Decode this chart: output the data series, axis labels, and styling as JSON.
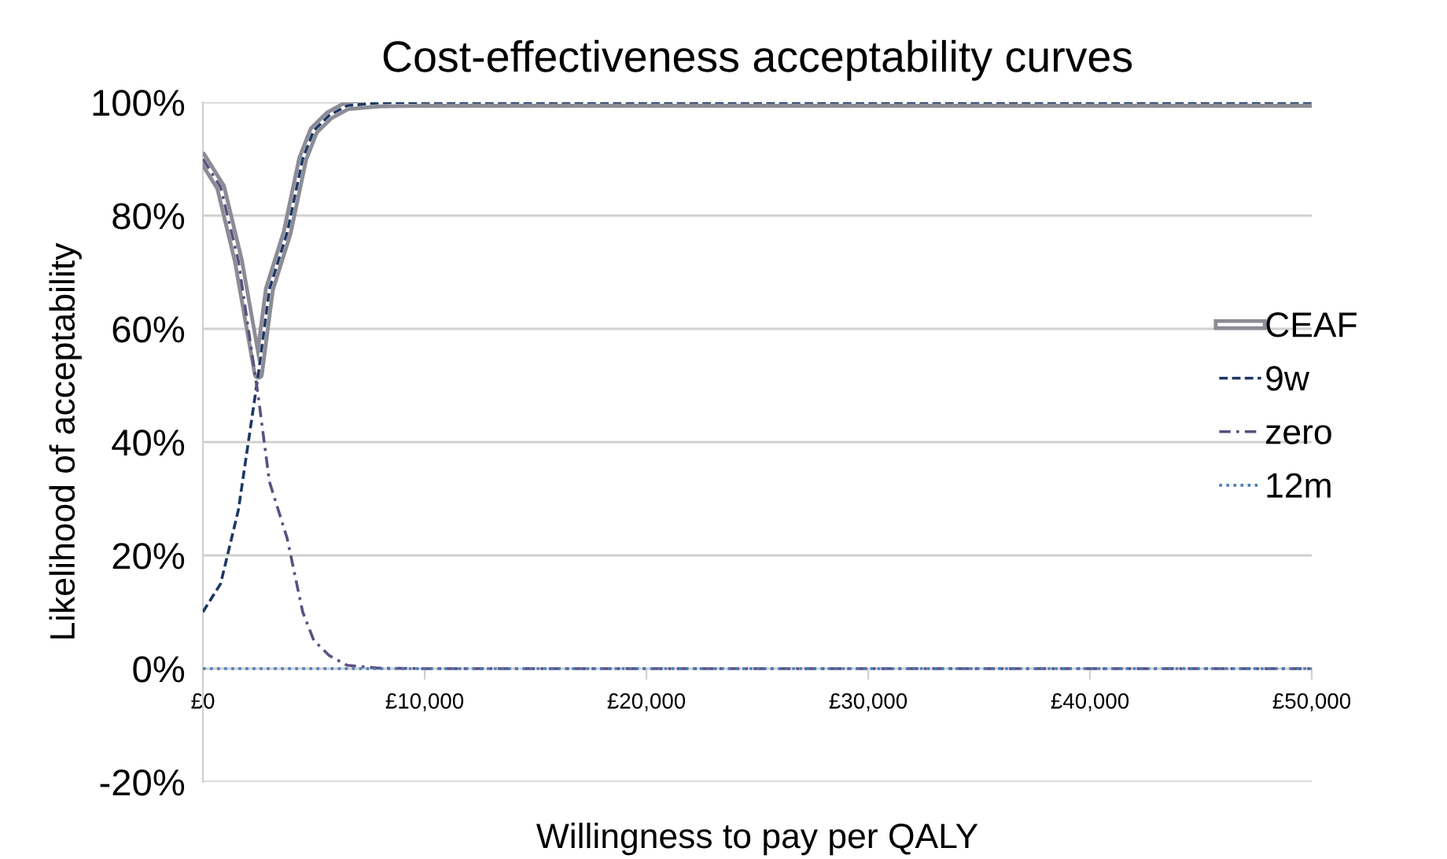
{
  "chart_data": {
    "type": "line",
    "title": "Cost-effectiveness acceptability curves",
    "xlabel": "Willingness to pay per QALY",
    "ylabel": "Likelihood of acceptability",
    "xlim": [
      0,
      50000
    ],
    "ylim": [
      -20,
      100
    ],
    "xticks": [
      {
        "value": 0,
        "label": "£0"
      },
      {
        "value": 10000,
        "label": "£10,000"
      },
      {
        "value": 20000,
        "label": "£20,000"
      },
      {
        "value": 30000,
        "label": "£30,000"
      },
      {
        "value": 40000,
        "label": "£40,000"
      },
      {
        "value": 50000,
        "label": "£50,000"
      }
    ],
    "yticks": [
      {
        "value": -20,
        "label": "-20%"
      },
      {
        "value": 0,
        "label": "0%"
      },
      {
        "value": 20,
        "label": "20%"
      },
      {
        "value": 40,
        "label": "40%"
      },
      {
        "value": 60,
        "label": "60%"
      },
      {
        "value": 80,
        "label": "80%"
      },
      {
        "value": 100,
        "label": "100%"
      }
    ],
    "x": [
      0,
      800,
      1600,
      2500,
      3000,
      3800,
      4500,
      5000,
      5700,
      6500,
      7900,
      10000,
      20000,
      30000,
      40000,
      50000
    ],
    "series": [
      {
        "name": "CEAF",
        "color": "#8c8c96",
        "line_style": "solid",
        "values": [
          90,
          85,
          72,
          52,
          67,
          77,
          90,
          95,
          97.7,
          99.4,
          99.9,
          100,
          100,
          100,
          100,
          100
        ]
      },
      {
        "name": "9w",
        "color": "#1f3864",
        "line_style": "dashed",
        "values": [
          10,
          15,
          28,
          52,
          67,
          77,
          90,
          95,
          97.7,
          99.4,
          99.9,
          100,
          100,
          100,
          100,
          100
        ]
      },
      {
        "name": "zero",
        "color": "#5e4f80",
        "line_style": "dashdot",
        "values": [
          90,
          85,
          72,
          48,
          33,
          23,
          10,
          5,
          2.3,
          0.6,
          0.1,
          0,
          0,
          0,
          0,
          0
        ]
      },
      {
        "name": "12m",
        "color": "#4a7ebb",
        "line_style": "dotted",
        "values": [
          0,
          0,
          0,
          0,
          0,
          0,
          0,
          0,
          0,
          0,
          0,
          0,
          0,
          0,
          0,
          0
        ]
      }
    ],
    "grid": "y",
    "legend": "right",
    "marker": "none"
  }
}
